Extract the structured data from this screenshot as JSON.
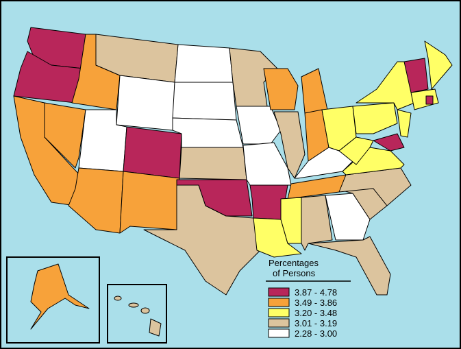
{
  "legend": {
    "title": [
      "Percentages",
      "of Persons"
    ],
    "items": [
      {
        "label": "3.87 - 4.78",
        "color": "#b8265a"
      },
      {
        "label": "3.49 - 3.86",
        "color": "#f7a23a"
      },
      {
        "label": "3.20 - 3.48",
        "color": "#ffff66"
      },
      {
        "label": "3.01 - 3.19",
        "color": "#dcc49e"
      },
      {
        "label": "2.28 - 3.00",
        "color": "#ffffff"
      }
    ]
  }
}
